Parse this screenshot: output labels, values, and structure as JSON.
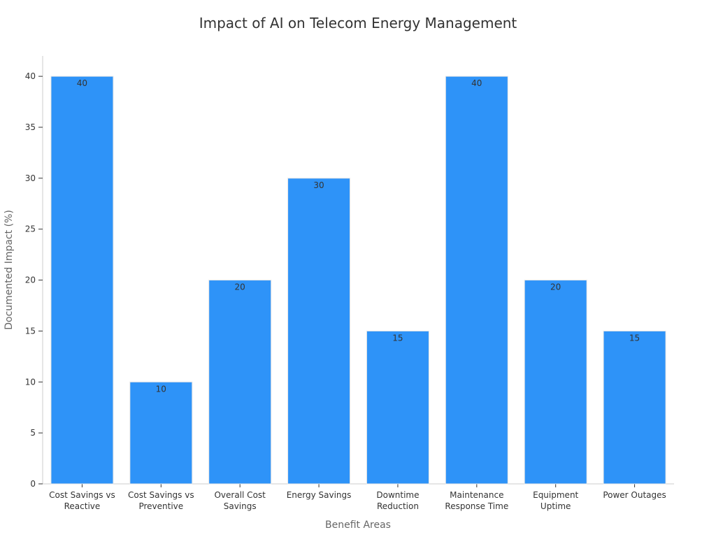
{
  "chart_data": {
    "type": "bar",
    "title": "Impact of AI on Telecom Energy Management",
    "xlabel": "Benefit Areas",
    "ylabel": "Documented Impact (%)",
    "categories": [
      [
        "Cost Savings vs",
        "Reactive"
      ],
      [
        "Cost Savings vs",
        "Preventive"
      ],
      [
        "Overall Cost",
        "Savings"
      ],
      [
        "Energy Savings"
      ],
      [
        "Downtime",
        "Reduction"
      ],
      [
        "Maintenance",
        "Response Time"
      ],
      [
        "Equipment",
        "Uptime"
      ],
      [
        "Power Outages"
      ]
    ],
    "values": [
      40,
      10,
      20,
      30,
      15,
      40,
      20,
      15
    ],
    "ylim": [
      0,
      42
    ],
    "yticks": [
      0,
      5,
      10,
      15,
      20,
      25,
      30,
      35,
      40
    ],
    "bar_color": "#2e93f8",
    "grid": false,
    "legend": "none"
  }
}
